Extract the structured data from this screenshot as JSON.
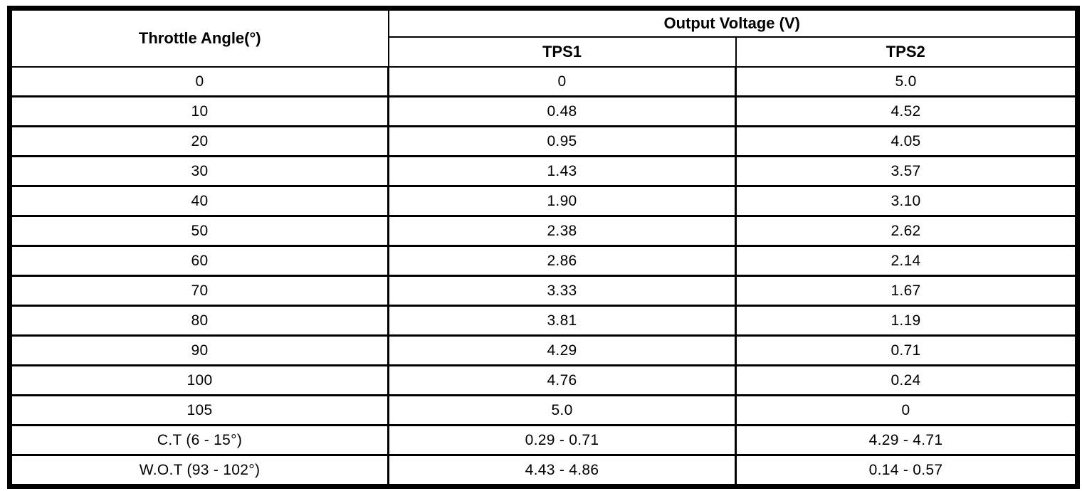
{
  "table": {
    "col1_header": "Throttle Angle(°)",
    "group_header": "Output Voltage (V)",
    "sub_headers": [
      "TPS1",
      "TPS2"
    ],
    "rows": [
      {
        "angle": "0",
        "tps1": "0",
        "tps2": "5.0"
      },
      {
        "angle": "10",
        "tps1": "0.48",
        "tps2": "4.52"
      },
      {
        "angle": "20",
        "tps1": "0.95",
        "tps2": "4.05"
      },
      {
        "angle": "30",
        "tps1": "1.43",
        "tps2": "3.57"
      },
      {
        "angle": "40",
        "tps1": "1.90",
        "tps2": "3.10"
      },
      {
        "angle": "50",
        "tps1": "2.38",
        "tps2": "2.62"
      },
      {
        "angle": "60",
        "tps1": "2.86",
        "tps2": "2.14"
      },
      {
        "angle": "70",
        "tps1": "3.33",
        "tps2": "1.67"
      },
      {
        "angle": "80",
        "tps1": "3.81",
        "tps2": "1.19"
      },
      {
        "angle": "90",
        "tps1": "4.29",
        "tps2": "0.71"
      },
      {
        "angle": "100",
        "tps1": "4.76",
        "tps2": "0.24"
      },
      {
        "angle": "105",
        "tps1": "5.0",
        "tps2": "0"
      },
      {
        "angle": "C.T (6 - 15°)",
        "tps1": "0.29 - 0.71",
        "tps2": "4.29 - 4.71"
      },
      {
        "angle": "W.O.T (93 - 102°)",
        "tps1": "4.43 - 4.86",
        "tps2": "0.14 - 0.57"
      }
    ],
    "colors": {
      "border": "#000000",
      "background": "#ffffff",
      "text": "#000000"
    }
  }
}
